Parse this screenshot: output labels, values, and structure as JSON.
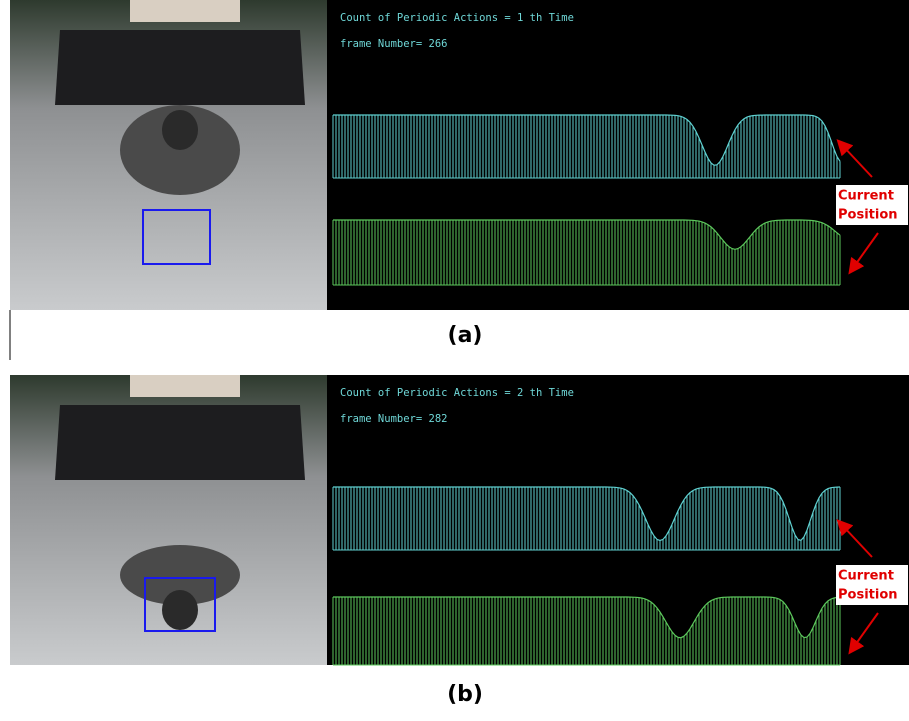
{
  "panels": [
    {
      "counter": "Count of Periodic Actions = 1 th Time",
      "frame": "frame Number= 266",
      "note_line1": "Current",
      "note_line2": "Position",
      "caption": "(a)"
    },
    {
      "counter": "Count of Periodic Actions = 2 th Time",
      "frame": "frame Number= 282",
      "note_line1": "Current",
      "note_line2": "Position",
      "caption": "(b)"
    }
  ]
}
